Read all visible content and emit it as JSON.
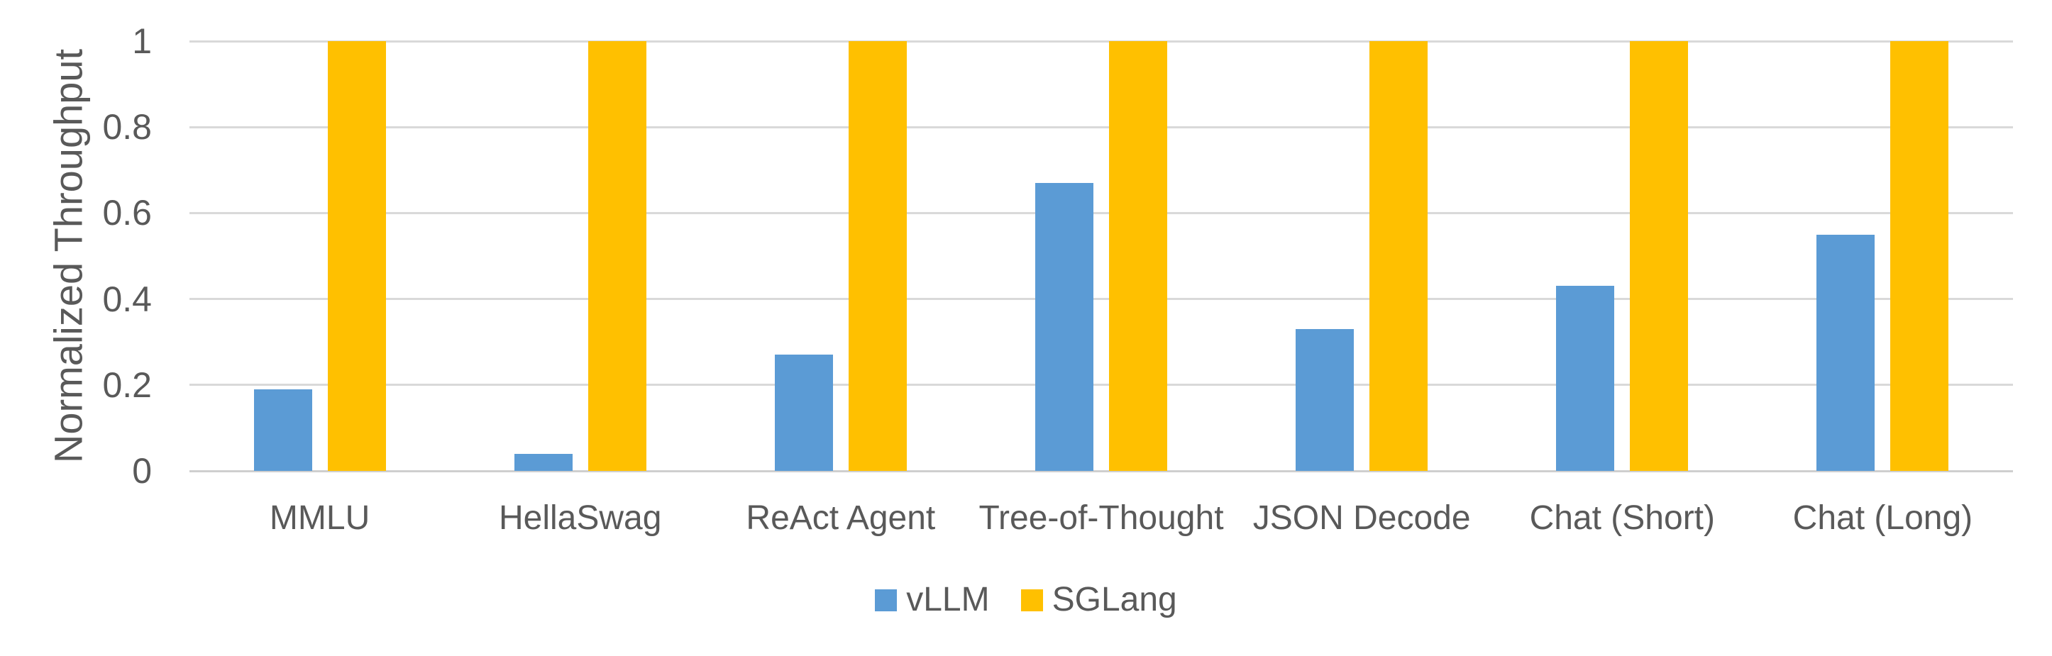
{
  "chart_data": {
    "type": "bar",
    "title": "",
    "xlabel": "",
    "ylabel": "Normalized Throughput",
    "categories": [
      "MMLU",
      "HellaSwag",
      "ReAct Agent",
      "Tree-of-Thought",
      "JSON Decode",
      "Chat (Short)",
      "Chat (Long)"
    ],
    "series": [
      {
        "name": "vLLM",
        "color": "#5B9BD5",
        "values": [
          0.19,
          0.04,
          0.27,
          0.67,
          0.33,
          0.43,
          0.55
        ]
      },
      {
        "name": "SGLang",
        "color": "#FFC000",
        "values": [
          1,
          1,
          1,
          1,
          1,
          1,
          1
        ]
      }
    ],
    "ylim": [
      0,
      1
    ],
    "yticks": [
      0,
      0.2,
      0.4,
      0.6,
      0.8,
      1
    ],
    "ytick_labels": [
      "0",
      "0.2",
      "0.4",
      "0.6",
      "0.8",
      "1"
    ],
    "grid": true,
    "legend_position": "bottom-center"
  },
  "colors": {
    "text": "#595959",
    "gridline": "#D9D9D9",
    "baseline": "#CFCFCF",
    "background": "#FFFFFF"
  }
}
